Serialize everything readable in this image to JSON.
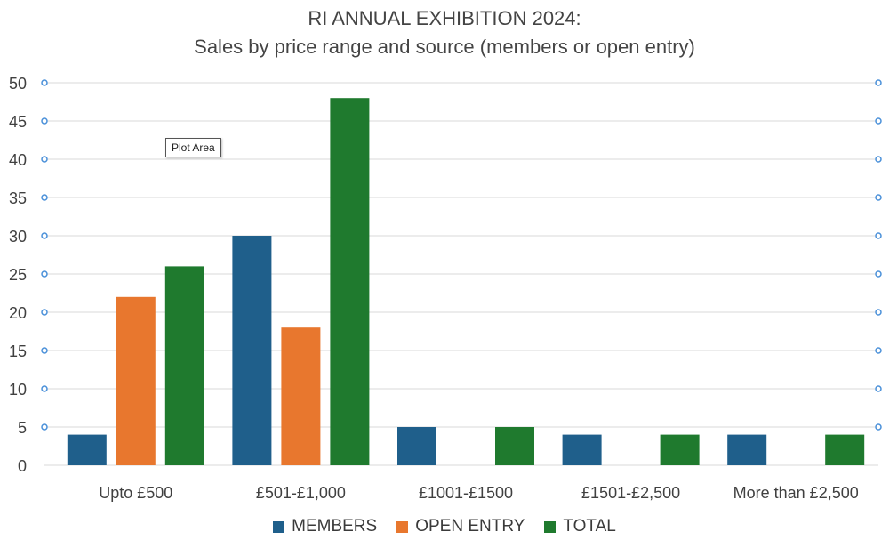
{
  "chart_data": {
    "type": "bar",
    "title": "RI ANNUAL EXHIBITION 2024:",
    "subtitle": "Sales by price range and source (members or open entry)",
    "categories": [
      "Upto £500",
      "£501-£1,000",
      "£1001-£1500",
      "£1501-£2,500",
      "More than £2,500"
    ],
    "series": [
      {
        "name": "MEMBERS",
        "color": "#1f5f8b",
        "values": [
          4,
          30,
          5,
          4,
          4
        ]
      },
      {
        "name": "OPEN ENTRY",
        "color": "#e8772e",
        "values": [
          22,
          18,
          0,
          0,
          0
        ]
      },
      {
        "name": "TOTAL",
        "color": "#1f7a2e",
        "values": [
          26,
          48,
          5,
          4,
          4
        ]
      }
    ],
    "y_ticks": [
      "0",
      "5",
      "10",
      "15",
      "20",
      "25",
      "30",
      "35",
      "40",
      "45",
      "50"
    ],
    "ylim": [
      0,
      50
    ],
    "grid": true,
    "legend_position": "bottom"
  },
  "tooltip": {
    "label": "Plot Area"
  }
}
